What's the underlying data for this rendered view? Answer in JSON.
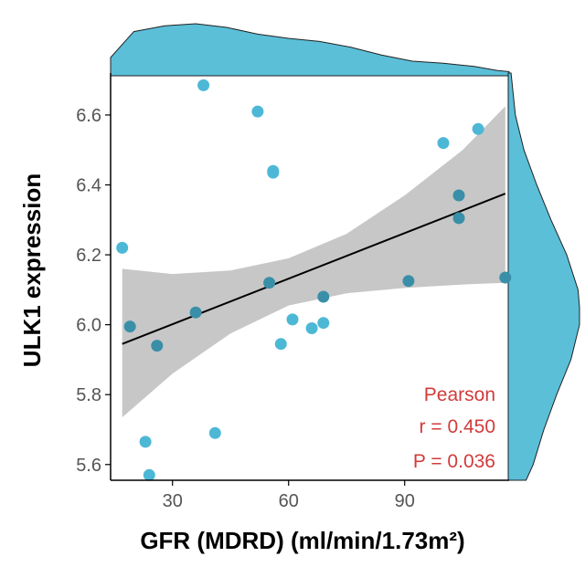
{
  "chart_data": {
    "type": "scatter",
    "xlabel": "GFR (MDRD) (ml/min/1.73m²)",
    "ylabel": "ULK1 expression",
    "xlim": [
      14,
      117
    ],
    "ylim": [
      5.555,
      6.72
    ],
    "x_ticks": [
      30,
      60,
      90
    ],
    "y_ticks": [
      5.6,
      5.8,
      6.0,
      6.2,
      6.4,
      6.6
    ],
    "x_tick_labels": [
      "30",
      "60",
      "90"
    ],
    "y_tick_labels": [
      "5.6",
      "5.8",
      "6.0",
      "6.2",
      "6.4",
      "6.6"
    ],
    "points": [
      {
        "x": 17,
        "y": 6.22
      },
      {
        "x": 19,
        "y": 5.995
      },
      {
        "x": 23,
        "y": 5.665
      },
      {
        "x": 24,
        "y": 5.57
      },
      {
        "x": 26,
        "y": 5.94
      },
      {
        "x": 36,
        "y": 6.035
      },
      {
        "x": 38,
        "y": 6.685
      },
      {
        "x": 41,
        "y": 5.69
      },
      {
        "x": 52,
        "y": 6.61
      },
      {
        "x": 55,
        "y": 6.12
      },
      {
        "x": 56,
        "y": 6.44
      },
      {
        "x": 56,
        "y": 6.435
      },
      {
        "x": 58,
        "y": 5.945
      },
      {
        "x": 61,
        "y": 6.015
      },
      {
        "x": 66,
        "y": 5.99
      },
      {
        "x": 69,
        "y": 6.08
      },
      {
        "x": 69,
        "y": 6.005
      },
      {
        "x": 91,
        "y": 6.125
      },
      {
        "x": 100,
        "y": 6.52
      },
      {
        "x": 104,
        "y": 6.37
      },
      {
        "x": 104,
        "y": 6.305
      },
      {
        "x": 109,
        "y": 6.56
      },
      {
        "x": 116,
        "y": 6.135
      }
    ],
    "regression": {
      "x": [
        17,
        116
      ],
      "y": [
        5.945,
        6.375
      ]
    },
    "confidence_band": {
      "x": [
        17,
        30,
        45,
        60,
        75,
        90,
        105,
        116
      ],
      "lower": [
        5.735,
        5.86,
        5.975,
        6.055,
        6.09,
        6.105,
        6.115,
        6.12
      ],
      "upper": [
        6.16,
        6.145,
        6.155,
        6.19,
        6.26,
        6.37,
        6.5,
        6.625
      ]
    },
    "marginal_x": {
      "x": [
        14,
        20,
        28,
        36,
        44,
        52,
        60,
        68,
        76,
        84,
        92,
        100,
        108,
        114,
        117
      ],
      "density": [
        0.35,
        0.85,
        0.96,
        1.0,
        0.93,
        0.8,
        0.72,
        0.66,
        0.55,
        0.4,
        0.28,
        0.24,
        0.18,
        0.1,
        0.08
      ]
    },
    "marginal_y": {
      "y": [
        5.555,
        5.6,
        5.7,
        5.8,
        5.9,
        6.0,
        6.05,
        6.1,
        6.2,
        6.3,
        6.4,
        6.5,
        6.6,
        6.72
      ],
      "density": [
        0.25,
        0.35,
        0.5,
        0.68,
        0.88,
        1.0,
        1.0,
        0.98,
        0.82,
        0.6,
        0.4,
        0.22,
        0.1,
        0.04
      ]
    },
    "grid": false,
    "colors": {
      "point": "#4db8d6",
      "point_dark": "#3a8fa8",
      "band": "#bdbdbd",
      "line": "#000000",
      "marginal": "#5bbfd8",
      "stats": "#d23b3b"
    },
    "annotations": {
      "method": "Pearson",
      "r": "r = 0.450",
      "p": "P = 0.036"
    }
  }
}
